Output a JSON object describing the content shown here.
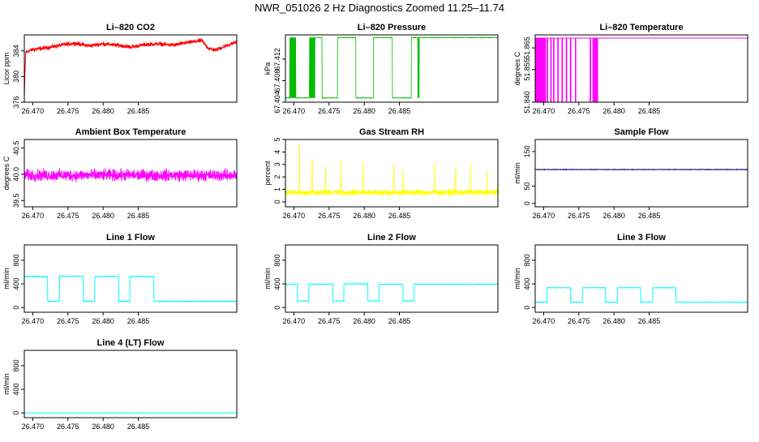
{
  "page_title": "NWR_051026  2 Hz Diagnostics Zoomed 11.25–11.74",
  "chart_data": [
    {
      "type": "line",
      "title": "Li–820 CO2",
      "ylabel": "Licor ppm",
      "color": "#ff0000",
      "xticks": [
        "26.470",
        "26.475",
        "26.480",
        "26.485"
      ],
      "xtick_values": [
        26.47,
        26.475,
        26.48,
        26.485
      ],
      "yticks": [
        "376",
        "380",
        "384"
      ],
      "ytick_values": [
        376,
        380,
        384
      ],
      "ylim": [
        376,
        386.5
      ],
      "x_range": [
        26.4688,
        26.499
      ],
      "series": [
        {
          "name": "CO2",
          "x": [
            26.4688,
            26.4689,
            26.469,
            26.47,
            26.472,
            26.474,
            26.476,
            26.478,
            26.48,
            26.482,
            26.484,
            26.486,
            26.488,
            26.49,
            26.492,
            26.494,
            26.495,
            26.496,
            26.497,
            26.498,
            26.499
          ],
          "values": [
            376.5,
            381,
            383.8,
            384.2,
            384.5,
            384.9,
            385.2,
            384.8,
            385.1,
            384.9,
            384.6,
            385.0,
            385.1,
            384.9,
            385.3,
            385.6,
            384.4,
            384.1,
            384.6,
            385.0,
            385.4
          ],
          "noise": 0.45
        }
      ]
    },
    {
      "type": "line",
      "title": "Li–820 Pressure",
      "ylabel": "kPa",
      "color": "#00bb00",
      "xticks": [
        "26.470",
        "26.475",
        "26.480",
        "26.485"
      ],
      "xtick_values": [
        26.47,
        26.475,
        26.48,
        26.485
      ],
      "yticks": [
        "67.404",
        "67.408",
        "67.412"
      ],
      "ytick_values": [
        67.404,
        67.408,
        67.412
      ],
      "ylim": [
        67.404,
        67.4165
      ],
      "x_range": [
        26.4688,
        26.499
      ],
      "series": [
        {
          "name": "Pressure",
          "levels": [
            67.4048,
            67.416
          ],
          "segments": [
            [
              26.4688,
              26.4694,
              0
            ],
            [
              26.4694,
              26.4703,
              2
            ],
            [
              26.4703,
              26.4722,
              0
            ],
            [
              26.4722,
              26.473,
              2
            ],
            [
              26.473,
              26.474,
              1
            ],
            [
              26.474,
              26.4762,
              0
            ],
            [
              26.4762,
              26.4788,
              1
            ],
            [
              26.4788,
              26.4813,
              0
            ],
            [
              26.4813,
              26.484,
              1
            ],
            [
              26.484,
              26.4867,
              0
            ],
            [
              26.4867,
              26.4876,
              1
            ],
            [
              26.4876,
              26.4878,
              2
            ],
            [
              26.4878,
              26.499,
              1
            ]
          ]
        }
      ]
    },
    {
      "type": "line",
      "title": "Li–820 Temperature",
      "ylabel": "degrees C",
      "color": "#ff00ff",
      "xticks": [
        "26.470",
        "26.475",
        "26.480",
        "26.485"
      ],
      "xtick_values": [
        26.47,
        26.475,
        26.48,
        26.485
      ],
      "yticks": [
        "51.840",
        "51.855",
        "51.865"
      ],
      "ytick_values": [
        51.84,
        51.855,
        51.865
      ],
      "ylim": [
        51.84,
        51.871
      ],
      "x_range": [
        26.4688,
        26.499
      ],
      "series": [
        {
          "name": "Temperature",
          "high": 51.8695,
          "low": 51.8402,
          "drops": [
            26.4689,
            26.4691,
            26.4692,
            26.4694,
            26.4695,
            26.4697,
            26.4698,
            26.47,
            26.4702,
            26.4705,
            26.471,
            26.4714,
            26.472,
            26.4726,
            26.4732,
            26.4738,
            26.4745,
            26.4766,
            26.477,
            26.4772,
            26.4774,
            26.4776
          ]
        }
      ]
    },
    {
      "type": "line",
      "title": "Ambient Box Temperature",
      "ylabel": "degrees C",
      "color": "#ff00ff",
      "xticks": [
        "26.470",
        "26.475",
        "26.480",
        "26.485"
      ],
      "xtick_values": [
        26.47,
        26.475,
        26.48,
        26.485
      ],
      "yticks": [
        "39.5",
        "40.0",
        "40.5"
      ],
      "ytick_values": [
        39.5,
        40.0,
        40.5
      ],
      "ylim": [
        39.38,
        40.66
      ],
      "x_range": [
        26.4688,
        26.499
      ],
      "series": [
        {
          "name": "Ambient",
          "mean": 39.98,
          "noise": 0.16
        }
      ]
    },
    {
      "type": "line",
      "title": "Gas Stream RH",
      "ylabel": "percent",
      "color": "#ffff00",
      "xticks": [
        "26.470",
        "26.475",
        "26.480",
        "26.485"
      ],
      "xtick_values": [
        26.47,
        26.475,
        26.48,
        26.485
      ],
      "yticks": [
        "0",
        "1",
        "2",
        "3",
        "4",
        "5"
      ],
      "ytick_values": [
        0,
        1,
        2,
        3,
        4,
        5
      ],
      "ylim": [
        -0.4,
        5.0
      ],
      "x_range": [
        26.4688,
        26.499
      ],
      "series": [
        {
          "name": "RH",
          "mean": 0.75,
          "noise": 0.35,
          "spikes": [
            [
              26.4708,
              4.7
            ],
            [
              26.4726,
              3.4
            ],
            [
              26.4745,
              2.9
            ],
            [
              26.4767,
              3.3
            ],
            [
              26.4798,
              3.2
            ],
            [
              26.4842,
              3.0
            ],
            [
              26.4855,
              2.6
            ],
            [
              26.49,
              3.1
            ],
            [
              26.493,
              2.7
            ],
            [
              26.4951,
              3.0
            ],
            [
              26.4975,
              2.5
            ]
          ]
        }
      ]
    },
    {
      "type": "line",
      "title": "Sample Flow",
      "ylabel": "ml/min",
      "color": "#00008b",
      "xticks": [
        "26.470",
        "26.475",
        "26.480",
        "26.485"
      ],
      "xtick_values": [
        26.47,
        26.475,
        26.48,
        26.485
      ],
      "yticks": [
        "0",
        "50",
        "150"
      ],
      "ytick_values": [
        0,
        50,
        150
      ],
      "ylim": [
        -10,
        185
      ],
      "x_range": [
        26.4688,
        26.499
      ],
      "series": [
        {
          "name": "Sample Flow",
          "mean": 98,
          "noise": 0.8
        }
      ]
    },
    {
      "type": "line",
      "title": "Line 1 Flow",
      "ylabel": "ml/min",
      "color": "#00ffff",
      "xticks": [
        "26.470",
        "26.475",
        "26.480",
        "26.485"
      ],
      "xtick_values": [
        26.47,
        26.475,
        26.48,
        26.485
      ],
      "yticks": [
        "0",
        "400",
        "800"
      ],
      "ytick_values": [
        0,
        400,
        800
      ],
      "ylim": [
        -80,
        1060
      ],
      "x_range": [
        26.4688,
        26.499
      ],
      "series": [
        {
          "name": "Line 1",
          "noise": 6,
          "segments": [
            [
              26.4688,
              26.4721,
              525
            ],
            [
              26.4721,
              26.4738,
              105
            ],
            [
              26.4738,
              26.4772,
              530
            ],
            [
              26.4772,
              26.4788,
              105
            ],
            [
              26.4788,
              26.4822,
              525
            ],
            [
              26.4822,
              26.4838,
              105
            ],
            [
              26.4838,
              26.4872,
              525
            ],
            [
              26.4872,
              26.499,
              105
            ]
          ]
        }
      ]
    },
    {
      "type": "line",
      "title": "Line 2 Flow",
      "ylabel": "ml/min",
      "color": "#00ffff",
      "xticks": [
        "26.470",
        "26.475",
        "26.480",
        "26.485"
      ],
      "xtick_values": [
        26.47,
        26.475,
        26.48,
        26.485
      ],
      "yticks": [
        "0",
        "400",
        "800"
      ],
      "ytick_values": [
        0,
        400,
        800
      ],
      "ylim": [
        -80,
        1060
      ],
      "x_range": [
        26.4688,
        26.499
      ],
      "series": [
        {
          "name": "Line 2",
          "noise": 6,
          "segments": [
            [
              26.4688,
              26.4705,
              395
            ],
            [
              26.4705,
              26.4721,
              110
            ],
            [
              26.4721,
              26.4755,
              395
            ],
            [
              26.4755,
              26.4771,
              110
            ],
            [
              26.4771,
              26.4805,
              400
            ],
            [
              26.4805,
              26.4821,
              110
            ],
            [
              26.4821,
              26.4855,
              395
            ],
            [
              26.4855,
              26.4871,
              110
            ],
            [
              26.4871,
              26.499,
              395
            ]
          ]
        }
      ]
    },
    {
      "type": "line",
      "title": "Line 3 Flow",
      "ylabel": "ml/min",
      "color": "#00ffff",
      "xticks": [
        "26.470",
        "26.475",
        "26.480",
        "26.485"
      ],
      "xtick_values": [
        26.47,
        26.475,
        26.48,
        26.485
      ],
      "yticks": [
        "0",
        "400",
        "800"
      ],
      "ytick_values": [
        0,
        400,
        800
      ],
      "ylim": [
        -80,
        1060
      ],
      "x_range": [
        26.4688,
        26.499
      ],
      "series": [
        {
          "name": "Line 3",
          "noise": 5,
          "segments": [
            [
              26.4688,
              26.4705,
              90
            ],
            [
              26.4705,
              26.4738,
              335
            ],
            [
              26.4738,
              26.4755,
              90
            ],
            [
              26.4755,
              26.4788,
              335
            ],
            [
              26.4788,
              26.4805,
              90
            ],
            [
              26.4805,
              26.4838,
              335
            ],
            [
              26.4838,
              26.4855,
              90
            ],
            [
              26.4855,
              26.4888,
              335
            ],
            [
              26.4888,
              26.499,
              90
            ]
          ]
        }
      ]
    },
    {
      "type": "line",
      "title": "Line 4 (LT) Flow",
      "ylabel": "ml/min",
      "color": "#00ffff",
      "xticks": [
        "26.470",
        "26.475",
        "26.480",
        "26.485"
      ],
      "xtick_values": [
        26.47,
        26.475,
        26.48,
        26.485
      ],
      "yticks": [
        "0",
        "400",
        "800"
      ],
      "ytick_values": [
        0,
        400,
        800
      ],
      "ylim": [
        -80,
        1060
      ],
      "x_range": [
        26.4688,
        26.499
      ],
      "series": [
        {
          "name": "Line 4",
          "mean": 1,
          "noise": 1.5
        }
      ]
    }
  ]
}
